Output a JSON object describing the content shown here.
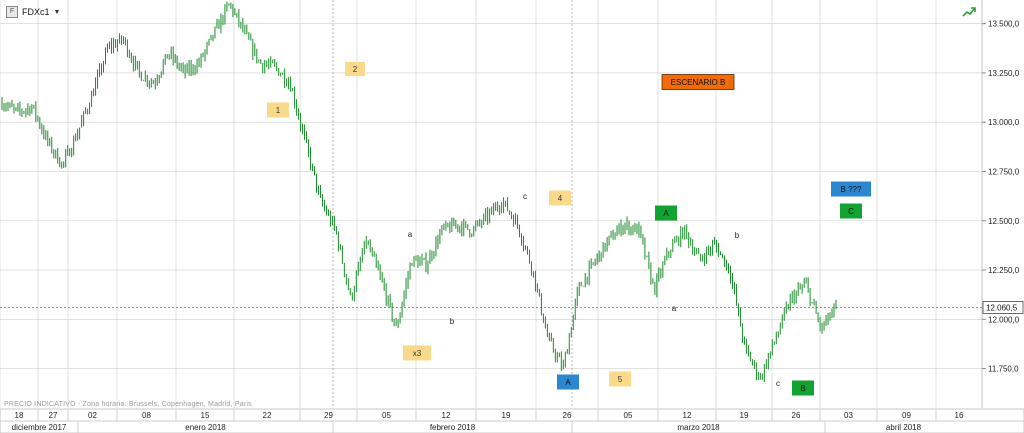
{
  "symbol": "FDXc1",
  "watermark": "PRECIO INDICATIVO - Zona horaria: Brussels, Copenhagen, Madrid, Paris",
  "price_marker": "12.060,5",
  "colors": {
    "candle": "#1a8a2a",
    "label_yellow": "#fbd98b",
    "label_green": "#13a332",
    "label_blue": "#2b87d0",
    "label_orange": "#f26b0a",
    "price_line": "#e23a3a",
    "grid": "#cfcfcf"
  },
  "icons": [
    "symbol-icon",
    "dropdown-caret-icon",
    "trend-arrow-icon"
  ],
  "chart_data": {
    "type": "line",
    "title": "",
    "y_ticks": [
      "13.500,0",
      "13.250,0",
      "13.000,0",
      "12.750,0",
      "12.500,0",
      "12.250,0",
      "12.000,0",
      "11.750,0"
    ],
    "y_tick_values": [
      13500,
      13250,
      13000,
      12750,
      12500,
      12250,
      12000,
      11750
    ],
    "ylim": [
      11550,
      13620
    ],
    "x_day_labels": [
      "18",
      "27",
      "02",
      "08",
      "15",
      "22",
      "29",
      "05",
      "12",
      "19",
      "26",
      "05",
      "12",
      "19",
      "26",
      "03",
      "09",
      "16"
    ],
    "x_month_labels": [
      "diciembre 2017",
      "enero 2018",
      "febrero 2018",
      "marzo 2018",
      "abril 2018"
    ],
    "grid": true,
    "series": [
      {
        "values": [
          13100,
          13050,
          13080,
          12900,
          12780,
          12950,
          13150,
          13380,
          13420,
          13250,
          13200,
          13350,
          13250,
          13300,
          13450,
          13600,
          13450,
          13300,
          13280,
          13200,
          12900,
          12600,
          12450,
          12100,
          12400,
          12200,
          11950,
          12300,
          12280,
          12450,
          12480,
          12450,
          12520,
          12600,
          12480,
          12250,
          11900,
          11750,
          12150,
          12280,
          12400,
          12480,
          12450,
          12150,
          12350,
          12450,
          12300,
          12380,
          12250,
          11850,
          11700,
          11900,
          12100,
          12180,
          11950,
          12060
        ]
      }
    ],
    "wave_labels": [
      {
        "text": "1",
        "style": "yellow"
      },
      {
        "text": "2",
        "style": "yellow"
      },
      {
        "text": "ESCENARIO B",
        "style": "orange"
      },
      {
        "text": "4",
        "style": "yellow"
      },
      {
        "text": "x3",
        "style": "yellow"
      },
      {
        "text": "A",
        "style": "blue"
      },
      {
        "text": "5",
        "style": "yellow"
      },
      {
        "text": "A",
        "style": "green"
      },
      {
        "text": "B ???",
        "style": "blue"
      },
      {
        "text": "C",
        "style": "green"
      },
      {
        "text": "B",
        "style": "green"
      }
    ],
    "annotations": [
      "a",
      "b",
      "c",
      "a",
      "b",
      "c"
    ]
  }
}
